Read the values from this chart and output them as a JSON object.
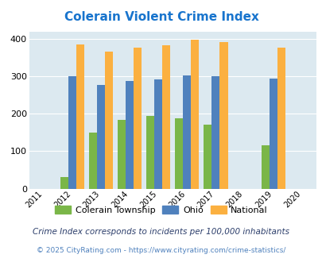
{
  "title": "Colerain Violent Crime Index",
  "years": [
    2011,
    2012,
    2013,
    2014,
    2015,
    2016,
    2017,
    2018,
    2019,
    2020
  ],
  "data_years": [
    2012,
    2013,
    2014,
    2015,
    2016,
    2017,
    2019
  ],
  "colerain": [
    30,
    150,
    183,
    195,
    188,
    170,
    115
  ],
  "ohio": [
    300,
    276,
    287,
    292,
    302,
    300,
    293
  ],
  "national": [
    385,
    367,
    376,
    384,
    398,
    392,
    376
  ],
  "bar_width": 0.28,
  "color_colerain": "#7ab648",
  "color_ohio": "#4f81bd",
  "color_national": "#fbb040",
  "bg_color": "#dce9f0",
  "ylim": [
    0,
    420
  ],
  "yticks": [
    0,
    100,
    200,
    300,
    400
  ],
  "legend_labels": [
    "Colerain Township",
    "Ohio",
    "National"
  ],
  "footnote1": "Crime Index corresponds to incidents per 100,000 inhabitants",
  "footnote2": "© 2025 CityRating.com - https://www.cityrating.com/crime-statistics/",
  "title_color": "#1874cd",
  "footnote1_color": "#2c3e6b",
  "footnote2_color": "#4f81bd"
}
